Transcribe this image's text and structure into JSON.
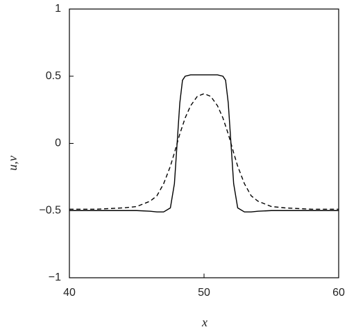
{
  "chart_data": {
    "type": "line",
    "xlabel": "x",
    "ylabel": "u,v",
    "x": [
      40,
      42,
      44,
      45,
      46,
      46.5,
      47,
      47.5,
      47.8,
      48,
      48.2,
      48.4,
      48.6,
      49,
      49.5,
      50,
      50.5,
      51,
      51.4,
      51.6,
      51.8,
      52,
      52.2,
      52.5,
      53,
      53.5,
      54,
      55,
      56,
      58,
      60
    ],
    "series": [
      {
        "color": "#000000",
        "style": "solid",
        "values": [
          -0.5,
          -0.5,
          -0.5,
          -0.5,
          -0.505,
          -0.51,
          -0.51,
          -0.48,
          -0.3,
          0,
          0.3,
          0.47,
          0.5,
          0.51,
          0.51,
          0.51,
          0.51,
          0.51,
          0.5,
          0.47,
          0.3,
          0,
          -0.3,
          -0.48,
          -0.51,
          -0.51,
          -0.505,
          -0.5,
          -0.5,
          -0.5,
          -0.5
        ]
      },
      {
        "color": "#000000",
        "style": "dashed",
        "values": [
          -0.49,
          -0.49,
          -0.48,
          -0.47,
          -0.43,
          -0.39,
          -0.3,
          -0.17,
          -0.07,
          0,
          0.07,
          0.13,
          0.19,
          0.28,
          0.35,
          0.37,
          0.35,
          0.28,
          0.19,
          0.13,
          0.07,
          0,
          -0.07,
          -0.17,
          -0.3,
          -0.39,
          -0.43,
          -0.47,
          -0.48,
          -0.49,
          -0.49
        ]
      }
    ],
    "xlim": [
      40,
      60
    ],
    "xticks": [
      40,
      50,
      60
    ],
    "ylim": [
      -1,
      1
    ],
    "yticks": [
      {
        "value": -1,
        "label": "−1"
      },
      {
        "value": -0.5,
        "label": "−0.5"
      },
      0,
      0.5,
      1
    ],
    "grid": false
  }
}
